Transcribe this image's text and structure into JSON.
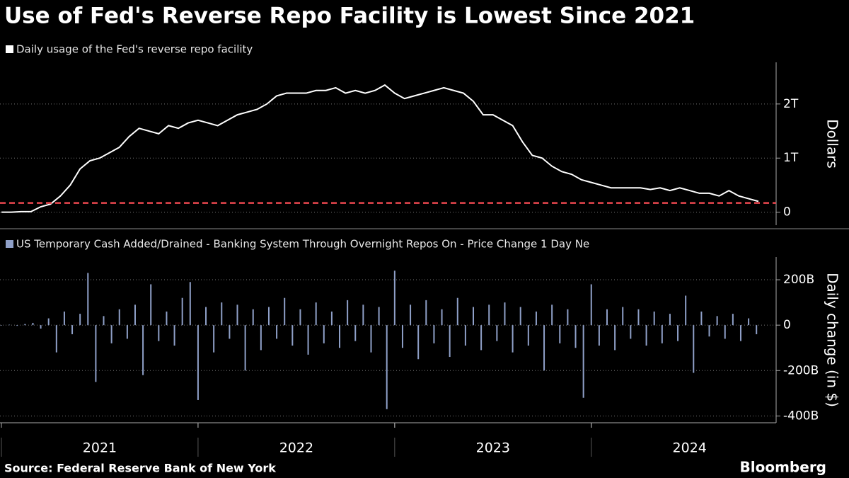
{
  "title": "Use of Fed's Reverse Repo Facility is Lowest Since 2021",
  "source": "Source: Federal Reserve Bank of New York",
  "brand": "Bloomberg",
  "chart_data": [
    {
      "type": "line",
      "ylabel": "Dollars",
      "xlim": [
        2021.0,
        2024.94
      ],
      "ylim": [
        -0.24,
        2.77
      ],
      "yticks": [
        {
          "value": 0,
          "label": "0"
        },
        {
          "value": 1,
          "label": "1T"
        },
        {
          "value": 2,
          "label": "2T"
        }
      ],
      "grid": true,
      "reference_line": {
        "value": 0.17,
        "color": "#e8464e"
      },
      "series": [
        {
          "name": "Daily usage of the Fed's reverse repo facility",
          "color": "#ffffff",
          "x": [
            2021.0,
            2021.05,
            2021.1,
            2021.15,
            2021.2,
            2021.25,
            2021.3,
            2021.35,
            2021.4,
            2021.45,
            2021.5,
            2021.55,
            2021.6,
            2021.65,
            2021.7,
            2021.75,
            2021.8,
            2021.85,
            2021.9,
            2021.95,
            2022.0,
            2022.05,
            2022.1,
            2022.15,
            2022.2,
            2022.25,
            2022.3,
            2022.35,
            2022.4,
            2022.45,
            2022.5,
            2022.55,
            2022.6,
            2022.65,
            2022.7,
            2022.75,
            2022.8,
            2022.85,
            2022.9,
            2022.95,
            2023.0,
            2023.05,
            2023.1,
            2023.15,
            2023.2,
            2023.25,
            2023.3,
            2023.35,
            2023.4,
            2023.45,
            2023.5,
            2023.55,
            2023.6,
            2023.65,
            2023.7,
            2023.75,
            2023.8,
            2023.85,
            2023.9,
            2023.95,
            2024.0,
            2024.05,
            2024.1,
            2024.15,
            2024.2,
            2024.25,
            2024.3,
            2024.35,
            2024.4,
            2024.45,
            2024.5,
            2024.55,
            2024.6,
            2024.65,
            2024.7,
            2024.75,
            2024.8,
            2024.85
          ],
          "values": [
            0,
            0,
            0.01,
            0.01,
            0.1,
            0.15,
            0.3,
            0.5,
            0.8,
            0.95,
            1.0,
            1.1,
            1.2,
            1.4,
            1.55,
            1.5,
            1.45,
            1.6,
            1.55,
            1.65,
            1.7,
            1.65,
            1.6,
            1.7,
            1.8,
            1.85,
            1.9,
            2.0,
            2.15,
            2.2,
            2.2,
            2.2,
            2.25,
            2.25,
            2.3,
            2.2,
            2.25,
            2.2,
            2.25,
            2.35,
            2.2,
            2.1,
            2.15,
            2.2,
            2.25,
            2.3,
            2.25,
            2.2,
            2.05,
            1.8,
            1.8,
            1.7,
            1.6,
            1.3,
            1.05,
            1.0,
            0.85,
            0.75,
            0.7,
            0.6,
            0.55,
            0.5,
            0.45,
            0.45,
            0.45,
            0.45,
            0.42,
            0.45,
            0.4,
            0.45,
            0.4,
            0.35,
            0.35,
            0.3,
            0.4,
            0.3,
            0.25,
            0.2
          ]
        }
      ]
    },
    {
      "type": "bar",
      "ylabel": "Daily change (in $)",
      "xlim": [
        2021.0,
        2024.94
      ],
      "ylim": [
        -430,
        300
      ],
      "yticks": [
        {
          "value": -400,
          "label": "-400B"
        },
        {
          "value": -200,
          "label": "-200B"
        },
        {
          "value": 0,
          "label": "0"
        },
        {
          "value": 200,
          "label": "200B"
        }
      ],
      "xticks": [
        {
          "value": 2021.5,
          "label": "2021"
        },
        {
          "value": 2022.5,
          "label": "2022"
        },
        {
          "value": 2023.5,
          "label": "2023"
        },
        {
          "value": 2024.5,
          "label": "2024"
        }
      ],
      "grid": true,
      "series": [
        {
          "name": "US Temporary Cash Added/Drained - Banking System Through Overnight Repos On - Price Change 1 Day Ne",
          "color": "#8fa0c8",
          "x": [
            2021.0,
            2021.04,
            2021.08,
            2021.12,
            2021.16,
            2021.2,
            2021.24,
            2021.28,
            2021.32,
            2021.36,
            2021.4,
            2021.44,
            2021.48,
            2021.52,
            2021.56,
            2021.6,
            2021.64,
            2021.68,
            2021.72,
            2021.76,
            2021.8,
            2021.84,
            2021.88,
            2021.92,
            2021.96,
            2022.0,
            2022.04,
            2022.08,
            2022.12,
            2022.16,
            2022.2,
            2022.24,
            2022.28,
            2022.32,
            2022.36,
            2022.4,
            2022.44,
            2022.48,
            2022.52,
            2022.56,
            2022.6,
            2022.64,
            2022.68,
            2022.72,
            2022.76,
            2022.8,
            2022.84,
            2022.88,
            2022.92,
            2022.96,
            2023.0,
            2023.04,
            2023.08,
            2023.12,
            2023.16,
            2023.2,
            2023.24,
            2023.28,
            2023.32,
            2023.36,
            2023.4,
            2023.44,
            2023.48,
            2023.52,
            2023.56,
            2023.6,
            2023.64,
            2023.68,
            2023.72,
            2023.76,
            2023.8,
            2023.84,
            2023.88,
            2023.92,
            2023.96,
            2024.0,
            2024.04,
            2024.08,
            2024.12,
            2024.16,
            2024.2,
            2024.24,
            2024.28,
            2024.32,
            2024.36,
            2024.4,
            2024.44,
            2024.48,
            2024.52,
            2024.56,
            2024.6,
            2024.64,
            2024.68,
            2024.72,
            2024.76,
            2024.8,
            2024.84
          ],
          "values": [
            0,
            2,
            -3,
            5,
            10,
            -15,
            30,
            -120,
            60,
            -40,
            50,
            230,
            -250,
            40,
            -80,
            70,
            -60,
            90,
            -220,
            180,
            -70,
            60,
            -90,
            120,
            190,
            -330,
            80,
            -120,
            100,
            -60,
            90,
            -200,
            70,
            -110,
            80,
            -60,
            120,
            -90,
            70,
            -130,
            100,
            -80,
            60,
            -100,
            110,
            -70,
            90,
            -120,
            80,
            -370,
            240,
            -100,
            90,
            -150,
            110,
            -80,
            70,
            -140,
            120,
            -90,
            80,
            -110,
            90,
            -70,
            100,
            -120,
            80,
            -90,
            60,
            -200,
            90,
            -80,
            70,
            -100,
            -320,
            180,
            -90,
            70,
            -110,
            80,
            -60,
            70,
            -90,
            60,
            -80,
            50,
            -70,
            130,
            -210,
            60,
            -50,
            40,
            -60,
            50,
            -70,
            30,
            -40
          ]
        }
      ]
    }
  ]
}
